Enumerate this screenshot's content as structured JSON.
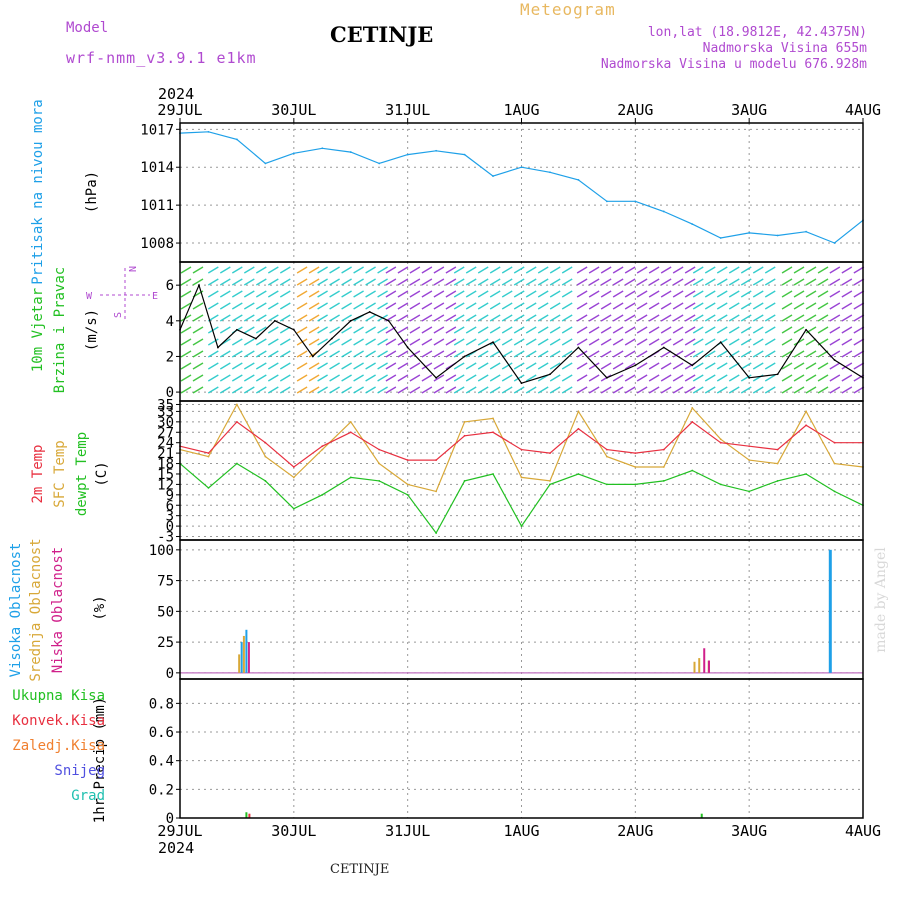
{
  "header": {
    "model_label": "Model",
    "model_name": "wrf-nmm_v3.9.1 e1km",
    "station": "CETINJE",
    "meteogram_label": "Meteogram",
    "lonlat": "lon,lat (18.9812E, 42.4375N)",
    "elevation": "Nadmorska Visina 655m",
    "model_elevation": "Nadmorska Visina u modelu 676.928m"
  },
  "footer": {
    "station": "CETINJE",
    "watermark": "made by Angel"
  },
  "time_axis": {
    "year": "2024",
    "labels": [
      "29JUL",
      "30JUL",
      "31JUL",
      "1AUG",
      "2AUG",
      "3AUG",
      "4AUG"
    ],
    "start": "2024-07-29T00:00",
    "end": "2024-08-04T00:00"
  },
  "colors": {
    "pressure": "#1ea0e8",
    "wind_label": "#22c022",
    "compass": "#b04ad0",
    "temp2m": "#e83040",
    "sfc": "#d8a838",
    "dewpt": "#22c022",
    "high_cloud": "#1ea0e8",
    "mid_cloud": "#d8a838",
    "low_cloud": "#d0208a",
    "total_precip": "#22c022",
    "conv_precip": "#e83040",
    "frozen_precip": "#f08030",
    "snow": "#5050e0",
    "hail": "#20c0b0"
  },
  "chart_data": [
    {
      "type": "line",
      "title": "",
      "ylabel_lines": [
        "Pritisak na nivou mora",
        "(hPa)"
      ],
      "yticks": [
        1008,
        1011,
        1014,
        1017
      ],
      "ylim": [
        1006.5,
        1017.5
      ],
      "grid": true,
      "series": [
        {
          "name": "Pritisak na nivou mora",
          "x": [
            "2024-07-29T00:00",
            "2024-07-29T06:00",
            "2024-07-29T12:00",
            "2024-07-29T18:00",
            "2024-07-30T00:00",
            "2024-07-30T06:00",
            "2024-07-30T12:00",
            "2024-07-30T18:00",
            "2024-07-31T00:00",
            "2024-07-31T06:00",
            "2024-07-31T12:00",
            "2024-07-31T18:00",
            "2024-08-01T00:00",
            "2024-08-01T06:00",
            "2024-08-01T12:00",
            "2024-08-01T18:00",
            "2024-08-02T00:00",
            "2024-08-02T06:00",
            "2024-08-02T12:00",
            "2024-08-02T18:00",
            "2024-08-03T00:00",
            "2024-08-03T06:00",
            "2024-08-03T12:00",
            "2024-08-03T18:00",
            "2024-08-04T00:00"
          ],
          "values": [
            1016.7,
            1016.8,
            1016.2,
            1014.3,
            1015.1,
            1015.5,
            1015.2,
            1014.3,
            1015.0,
            1015.3,
            1015.0,
            1013.3,
            1014.0,
            1013.6,
            1013.0,
            1011.3,
            1011.3,
            1010.5,
            1009.5,
            1008.4,
            1008.8,
            1008.6,
            1008.9,
            1008.0,
            1009.8
          ]
        }
      ]
    },
    {
      "type": "line",
      "title": "",
      "ylabel_lines": [
        "10m Vjetar",
        "Brzina i Pravac",
        "(m/s)"
      ],
      "compass": {
        "north": "N",
        "south": "S",
        "east": "E",
        "west": "W"
      },
      "yticks": [
        0,
        2,
        4,
        6
      ],
      "ylim": [
        -0.5,
        7.3
      ],
      "grid": true,
      "series": [
        {
          "name": "10m Vjetar",
          "x": [
            "2024-07-29T00:00",
            "2024-07-29T04:00",
            "2024-07-29T08:00",
            "2024-07-29T12:00",
            "2024-07-29T16:00",
            "2024-07-29T20:00",
            "2024-07-30T00:00",
            "2024-07-30T04:00",
            "2024-07-30T08:00",
            "2024-07-30T12:00",
            "2024-07-30T16:00",
            "2024-07-30T20:00",
            "2024-07-31T00:00",
            "2024-07-31T06:00",
            "2024-07-31T12:00",
            "2024-07-31T18:00",
            "2024-08-01T00:00",
            "2024-08-01T06:00",
            "2024-08-01T12:00",
            "2024-08-01T18:00",
            "2024-08-02T00:00",
            "2024-08-02T06:00",
            "2024-08-02T12:00",
            "2024-08-02T18:00",
            "2024-08-03T00:00",
            "2024-08-03T06:00",
            "2024-08-03T12:00",
            "2024-08-03T18:00",
            "2024-08-04T00:00"
          ],
          "values": [
            3.5,
            6.0,
            2.5,
            3.5,
            3.0,
            4.0,
            3.5,
            2.0,
            3.0,
            4.0,
            4.5,
            4.0,
            2.5,
            0.8,
            2.0,
            2.8,
            0.5,
            1.0,
            2.5,
            0.8,
            1.5,
            2.5,
            1.5,
            2.8,
            0.8,
            1.0,
            3.5,
            1.8,
            0.8
          ]
        }
      ]
    },
    {
      "type": "line",
      "title": "",
      "ylabel_lines": [
        "2m Temp",
        "SFC Temp",
        "dewpt Temp",
        "(C)"
      ],
      "yticks": [
        -3,
        0,
        3,
        6,
        9,
        12,
        15,
        18,
        21,
        24,
        27,
        30,
        33,
        35
      ],
      "ylim": [
        -4,
        36
      ],
      "grid": true,
      "series": [
        {
          "name": "2m Temp",
          "x": [
            "2024-07-29T00:00",
            "2024-07-29T06:00",
            "2024-07-29T12:00",
            "2024-07-29T18:00",
            "2024-07-30T00:00",
            "2024-07-30T06:00",
            "2024-07-30T12:00",
            "2024-07-30T18:00",
            "2024-07-31T00:00",
            "2024-07-31T06:00",
            "2024-07-31T12:00",
            "2024-07-31T18:00",
            "2024-08-01T00:00",
            "2024-08-01T06:00",
            "2024-08-01T12:00",
            "2024-08-01T18:00",
            "2024-08-02T00:00",
            "2024-08-02T06:00",
            "2024-08-02T12:00",
            "2024-08-02T18:00",
            "2024-08-03T00:00",
            "2024-08-03T06:00",
            "2024-08-03T12:00",
            "2024-08-03T18:00",
            "2024-08-04T00:00"
          ],
          "values": [
            23,
            21,
            30,
            24,
            17,
            23,
            27,
            22,
            19,
            19,
            26,
            27,
            22,
            21,
            28,
            22,
            21,
            22,
            30,
            24,
            23,
            22,
            29,
            24,
            24
          ]
        },
        {
          "name": "SFC Temp",
          "x": [
            "2024-07-29T00:00",
            "2024-07-29T06:00",
            "2024-07-29T12:00",
            "2024-07-29T18:00",
            "2024-07-30T00:00",
            "2024-07-30T06:00",
            "2024-07-30T12:00",
            "2024-07-30T18:00",
            "2024-07-31T00:00",
            "2024-07-31T06:00",
            "2024-07-31T12:00",
            "2024-07-31T18:00",
            "2024-08-01T00:00",
            "2024-08-01T06:00",
            "2024-08-01T12:00",
            "2024-08-01T18:00",
            "2024-08-02T00:00",
            "2024-08-02T06:00",
            "2024-08-02T12:00",
            "2024-08-02T18:00",
            "2024-08-03T00:00",
            "2024-08-03T06:00",
            "2024-08-03T12:00",
            "2024-08-03T18:00",
            "2024-08-04T00:00"
          ],
          "values": [
            22,
            20,
            35,
            20,
            14,
            22,
            30,
            18,
            12,
            10,
            30,
            31,
            14,
            13,
            33,
            20,
            17,
            17,
            34,
            25,
            19,
            18,
            33,
            18,
            17
          ]
        },
        {
          "name": "dewpt Temp",
          "x": [
            "2024-07-29T00:00",
            "2024-07-29T06:00",
            "2024-07-29T12:00",
            "2024-07-29T18:00",
            "2024-07-30T00:00",
            "2024-07-30T06:00",
            "2024-07-30T12:00",
            "2024-07-30T18:00",
            "2024-07-31T00:00",
            "2024-07-31T06:00",
            "2024-07-31T12:00",
            "2024-07-31T18:00",
            "2024-08-01T00:00",
            "2024-08-01T06:00",
            "2024-08-01T12:00",
            "2024-08-01T18:00",
            "2024-08-02T00:00",
            "2024-08-02T06:00",
            "2024-08-02T12:00",
            "2024-08-02T18:00",
            "2024-08-03T00:00",
            "2024-08-03T06:00",
            "2024-08-03T12:00",
            "2024-08-03T18:00",
            "2024-08-04T00:00"
          ],
          "values": [
            18,
            11,
            18,
            13,
            5,
            9,
            14,
            13,
            9,
            -2,
            13,
            15,
            0,
            12,
            15,
            12,
            12,
            13,
            16,
            12,
            10,
            13,
            15,
            10,
            6
          ]
        }
      ]
    },
    {
      "type": "bar",
      "title": "",
      "ylabel_lines": [
        "Visoka Oblacnost",
        "Srednja Oblacnost",
        "Niska Oblacnost",
        "(%)"
      ],
      "yticks": [
        0,
        25,
        50,
        75,
        100
      ],
      "ylim": [
        -5,
        108
      ],
      "grid": true,
      "series": [
        {
          "name": "Visoka Oblacnost",
          "x": [
            "2024-07-29T13:00",
            "2024-07-29T14:00",
            "2024-08-03T17:00"
          ],
          "values": [
            25,
            35,
            100
          ]
        },
        {
          "name": "Srednja Oblacnost",
          "x": [
            "2024-07-29T13:00",
            "2024-07-29T14:00",
            "2024-08-02T13:00",
            "2024-08-02T14:00",
            "2024-08-02T16:00"
          ],
          "values": [
            15,
            30,
            9,
            12,
            10
          ]
        },
        {
          "name": "Niska Oblacnost",
          "x": [
            "2024-07-29T14:00",
            "2024-08-02T14:00",
            "2024-08-02T15:00"
          ],
          "values": [
            25,
            20,
            10
          ]
        }
      ]
    },
    {
      "type": "bar",
      "title": "",
      "ylabel_lines": [
        "1hr Precip (mm)"
      ],
      "yticks": [
        0,
        0.2,
        0.4,
        0.6,
        0.8
      ],
      "ylim": [
        0,
        0.97
      ],
      "grid": true,
      "series": [
        {
          "name": "Ukupna Kisa",
          "x": [
            "2024-07-29T14:00",
            "2024-08-02T14:00"
          ],
          "values": [
            0.04,
            0.03
          ]
        },
        {
          "name": "Konvek.Kisa",
          "x": [
            "2024-07-29T14:00"
          ],
          "values": [
            0.03
          ]
        },
        {
          "name": "Zaledj.Kisa",
          "x": [],
          "values": []
        },
        {
          "name": "Snijeg",
          "x": [],
          "values": []
        },
        {
          "name": "Grad",
          "x": [],
          "values": []
        }
      ]
    }
  ]
}
